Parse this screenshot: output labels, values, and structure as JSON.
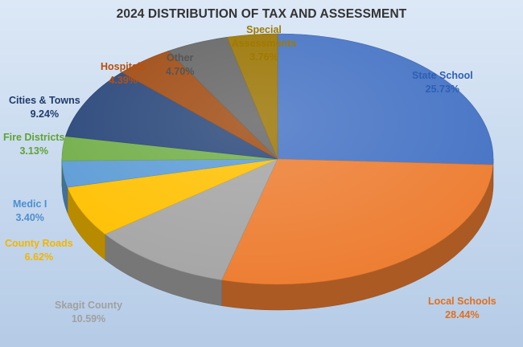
{
  "chart_data": {
    "type": "pie",
    "title": "2024 DISTRIBUTION OF TAX AND ASSESSMENT",
    "three_d": true,
    "legend": "none",
    "slices": [
      {
        "label": "State School",
        "value": 25.73,
        "value_label": "25.73%",
        "color": "#4472c4",
        "label_color": "#2e5fb5"
      },
      {
        "label": "Local Schools",
        "value": 28.44,
        "value_label": "28.44%",
        "color": "#ed7d31",
        "label_color": "#e0701f"
      },
      {
        "label": "Skagit County",
        "value": 10.59,
        "value_label": "10.59%",
        "color": "#a5a5a5",
        "label_color": "#a0a0a0"
      },
      {
        "label": "County Roads",
        "value": 6.62,
        "value_label": "6.62%",
        "color": "#ffc000",
        "label_color": "#f2b600"
      },
      {
        "label": "Medic I",
        "value": 3.4,
        "value_label": "3.40%",
        "color": "#5b9bd5",
        "label_color": "#4d8fcf"
      },
      {
        "label": "Fire Districts",
        "value": 3.13,
        "value_label": "3.13%",
        "color": "#70ad47",
        "label_color": "#5fa332"
      },
      {
        "label": "Cities & Towns",
        "value": 9.24,
        "value_label": "9.24%",
        "color": "#264478",
        "label_color": "#1f3b6b"
      },
      {
        "label": "Hospitals",
        "value": 4.39,
        "value_label": "4.39%",
        "color": "#9e480e",
        "label_color": "#b5500f"
      },
      {
        "label": "Other",
        "value": 4.7,
        "value_label": "4.70%",
        "color": "#636363",
        "label_color": "#555555"
      },
      {
        "label": "Special Assessments",
        "value": 3.76,
        "value_label": "3.76%",
        "color": "#997300",
        "label_color": "#a07a00"
      }
    ]
  }
}
